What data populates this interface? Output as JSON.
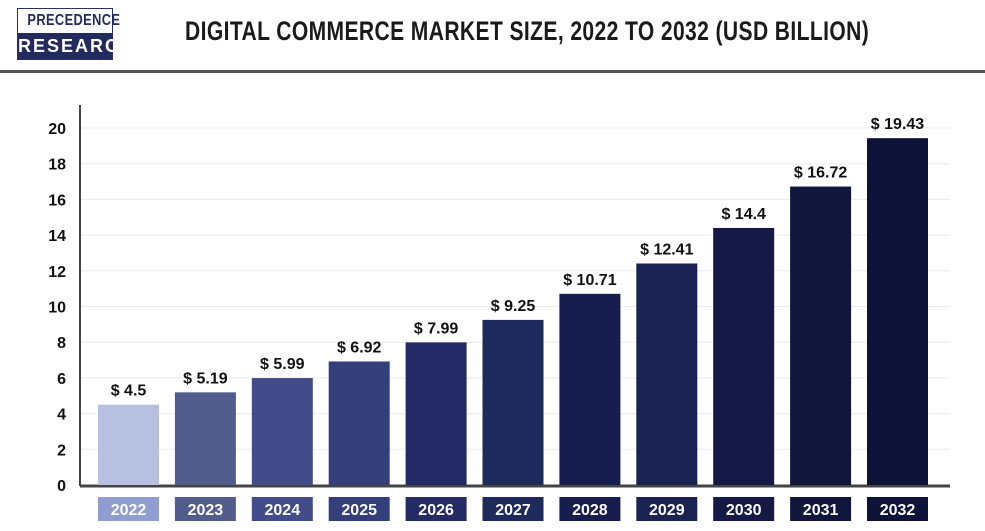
{
  "logo": {
    "line1": "PRECEDENCE",
    "line2": "RESEARCH"
  },
  "chart_data": {
    "type": "bar",
    "title": "DIGITAL COMMERCE MARKET SIZE, 2022 TO 2032 (USD BILLION)",
    "categories": [
      "2022",
      "2023",
      "2024",
      "2025",
      "2026",
      "2027",
      "2028",
      "2029",
      "2030",
      "2031",
      "2032"
    ],
    "values": [
      4.5,
      5.19,
      5.99,
      6.92,
      7.99,
      9.25,
      10.71,
      12.41,
      14.4,
      16.72,
      19.43
    ],
    "data_labels": [
      "$ 4.5",
      "$ 5.19",
      "$ 5.99",
      "$ 6.92",
      "$ 7.99",
      "$ 9.25",
      "$ 10.71",
      "$ 12.41",
      "$ 14.4",
      "$ 16.72",
      "$ 19.43"
    ],
    "ylim": [
      0,
      20
    ],
    "yticks": [
      0,
      2,
      4,
      6,
      8,
      10,
      12,
      14,
      16,
      18,
      20
    ],
    "grid": true,
    "xlabel": "",
    "ylabel": "",
    "colors": [
      "#b7c0e0",
      "#525d8e",
      "#434c8a",
      "#343e7a",
      "#232a66",
      "#1f2a5c",
      "#171e4f",
      "#1a2352",
      "#141a45",
      "#10163c",
      "#0c1238"
    ],
    "label_box_colors": [
      "#8f9dd0",
      "#525d8e",
      "#434c8a",
      "#343e7a",
      "#232a66",
      "#1f2a5c",
      "#171e4f",
      "#1a2352",
      "#141a45",
      "#10163c",
      "#0c1238"
    ]
  }
}
